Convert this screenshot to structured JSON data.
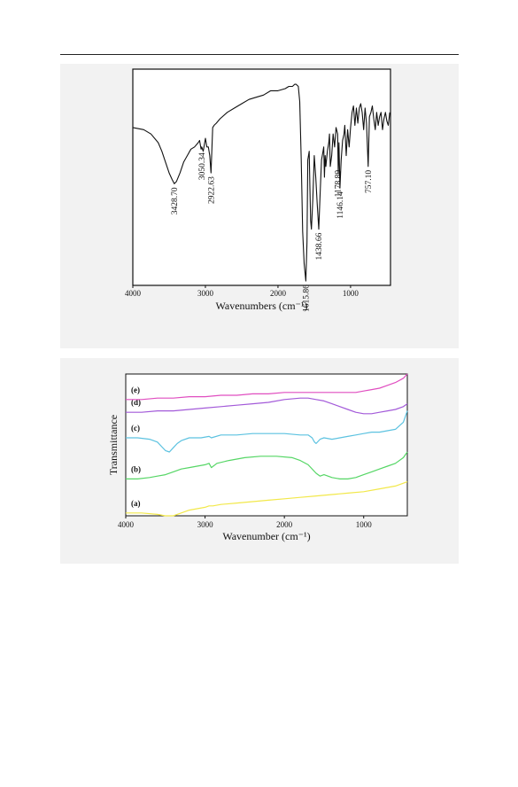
{
  "chart_data": [
    {
      "type": "line",
      "title": "",
      "xlabel": "Wavenumbers (cm⁻¹)",
      "ylabel": "",
      "xlim": [
        4000,
        450
      ],
      "xticks": [
        "4000",
        "3000",
        "2000",
        "1000"
      ],
      "xtick_values": [
        4000,
        3000,
        2000,
        1000
      ],
      "series": [
        {
          "color": "#111111",
          "x": [
            4000,
            3850,
            3750,
            3650,
            3600,
            3550,
            3500,
            3460,
            3428.7,
            3400,
            3350,
            3300,
            3250,
            3200,
            3150,
            3100,
            3080,
            3060,
            3050.34,
            3030,
            3000,
            2980,
            2960,
            2940,
            2922.63,
            2900,
            2880,
            2850,
            2800,
            2700,
            2600,
            2500,
            2400,
            2300,
            2200,
            2100,
            2000,
            1900,
            1850,
            1800,
            1770,
            1750,
            1720,
            1700,
            1680,
            1660,
            1640,
            1615.86,
            1600,
            1590,
            1570,
            1560,
            1550,
            1540,
            1520,
            1500,
            1480,
            1460,
            1438.66,
            1420,
            1400,
            1380,
            1370,
            1360,
            1350,
            1340,
            1320,
            1300,
            1290,
            1280,
            1260,
            1240,
            1220,
            1200,
            1178.8,
            1170,
            1160,
            1146.14,
            1130,
            1110,
            1090,
            1080,
            1060,
            1040,
            1020,
            1000,
            980,
            960,
            940,
            920,
            900,
            880,
            860,
            840,
            820,
            800,
            780,
            757.1,
            740,
            720,
            700,
            680,
            660,
            640,
            620,
            600,
            580,
            560,
            540,
            520,
            500,
            480,
            460
          ],
          "y": [
            0.73,
            0.72,
            0.7,
            0.66,
            0.62,
            0.57,
            0.52,
            0.49,
            0.47,
            0.48,
            0.52,
            0.57,
            0.6,
            0.63,
            0.64,
            0.66,
            0.67,
            0.63,
            0.64,
            0.62,
            0.68,
            0.64,
            0.64,
            0.6,
            0.52,
            0.73,
            0.74,
            0.75,
            0.77,
            0.8,
            0.82,
            0.84,
            0.86,
            0.87,
            0.88,
            0.9,
            0.9,
            0.91,
            0.92,
            0.92,
            0.93,
            0.93,
            0.92,
            0.85,
            0.58,
            0.25,
            0.1,
            0.02,
            0.2,
            0.58,
            0.62,
            0.45,
            0.3,
            0.26,
            0.4,
            0.6,
            0.5,
            0.38,
            0.26,
            0.42,
            0.58,
            0.62,
            0.64,
            0.5,
            0.6,
            0.55,
            0.62,
            0.66,
            0.7,
            0.55,
            0.6,
            0.7,
            0.64,
            0.73,
            0.7,
            0.52,
            0.66,
            0.45,
            0.58,
            0.67,
            0.7,
            0.74,
            0.6,
            0.72,
            0.64,
            0.73,
            0.8,
            0.83,
            0.74,
            0.82,
            0.75,
            0.82,
            0.84,
            0.8,
            0.72,
            0.82,
            0.75,
            0.55,
            0.78,
            0.8,
            0.83,
            0.77,
            0.72,
            0.8,
            0.74,
            0.78,
            0.8,
            0.72,
            0.77,
            0.8,
            0.76,
            0.74,
            0.8
          ]
        }
      ],
      "annotations": [
        {
          "text": "3428.70",
          "x": 3428.7,
          "y": 0.47
        },
        {
          "text": "3050.34",
          "x": 3050.34,
          "y": 0.63
        },
        {
          "text": "2922.63",
          "x": 2922.63,
          "y": 0.52
        },
        {
          "text": "1615.86",
          "x": 1615.86,
          "y": 0.02
        },
        {
          "text": "1438.66",
          "x": 1438.66,
          "y": 0.26
        },
        {
          "text": "1178.80",
          "x": 1178.8,
          "y": 0.55
        },
        {
          "text": "1146.14",
          "x": 1146.14,
          "y": 0.45
        },
        {
          "text": "757.10",
          "x": 757.1,
          "y": 0.55
        }
      ],
      "grid": false
    },
    {
      "type": "line",
      "title": "",
      "xlabel": "Wavenumber (cm⁻¹)",
      "ylabel": "Transmittance",
      "xlim": [
        4000,
        450
      ],
      "xticks": [
        "4000",
        "3000",
        "2000",
        "1000"
      ],
      "xtick_values": [
        4000,
        3000,
        2000,
        1000
      ],
      "ylim": [
        0,
        1
      ],
      "series": [
        {
          "name": "(a)",
          "color": "#f2e84a",
          "x": [
            4000,
            3800,
            3600,
            3500,
            3400,
            3300,
            3200,
            3100,
            3000,
            2950,
            2900,
            2800,
            2600,
            2400,
            2200,
            2000,
            1800,
            1600,
            1400,
            1200,
            1000,
            800,
            600,
            450
          ],
          "y": [
            0.02,
            0.02,
            0.01,
            0.0,
            0.0,
            0.02,
            0.04,
            0.05,
            0.06,
            0.07,
            0.07,
            0.08,
            0.09,
            0.1,
            0.11,
            0.12,
            0.13,
            0.14,
            0.15,
            0.16,
            0.17,
            0.19,
            0.21,
            0.24
          ]
        },
        {
          "name": "(b)",
          "color": "#55d665",
          "x": [
            4000,
            3850,
            3700,
            3600,
            3500,
            3400,
            3300,
            3200,
            3100,
            3000,
            2950,
            2920,
            2850,
            2700,
            2500,
            2300,
            2100,
            1900,
            1800,
            1700,
            1600,
            1550,
            1500,
            1400,
            1300,
            1200,
            1100,
            1000,
            900,
            800,
            700,
            600,
            500,
            450
          ],
          "y": [
            0.26,
            0.26,
            0.27,
            0.28,
            0.29,
            0.31,
            0.33,
            0.34,
            0.35,
            0.36,
            0.37,
            0.34,
            0.37,
            0.39,
            0.41,
            0.42,
            0.42,
            0.41,
            0.39,
            0.36,
            0.3,
            0.28,
            0.29,
            0.27,
            0.26,
            0.26,
            0.27,
            0.29,
            0.31,
            0.33,
            0.35,
            0.37,
            0.41,
            0.45
          ]
        },
        {
          "name": "(c)",
          "color": "#5cc2e0",
          "x": [
            4000,
            3850,
            3700,
            3600,
            3550,
            3500,
            3450,
            3400,
            3350,
            3300,
            3200,
            3050,
            2950,
            2920,
            2800,
            2600,
            2400,
            2200,
            2000,
            1800,
            1700,
            1650,
            1620,
            1600,
            1550,
            1500,
            1400,
            1300,
            1200,
            1100,
            1000,
            900,
            800,
            700,
            600,
            500,
            450
          ],
          "y": [
            0.55,
            0.55,
            0.54,
            0.52,
            0.49,
            0.46,
            0.45,
            0.48,
            0.51,
            0.53,
            0.55,
            0.55,
            0.56,
            0.55,
            0.57,
            0.57,
            0.58,
            0.58,
            0.58,
            0.57,
            0.57,
            0.55,
            0.52,
            0.51,
            0.54,
            0.55,
            0.54,
            0.55,
            0.56,
            0.57,
            0.58,
            0.59,
            0.59,
            0.6,
            0.61,
            0.66,
            0.74
          ]
        },
        {
          "name": "(d)",
          "color": "#a35ad9",
          "x": [
            4000,
            3800,
            3600,
            3400,
            3200,
            3000,
            2800,
            2600,
            2400,
            2200,
            2000,
            1800,
            1700,
            1600,
            1500,
            1400,
            1300,
            1200,
            1100,
            1000,
            900,
            800,
            700,
            600,
            500,
            450
          ],
          "y": [
            0.73,
            0.73,
            0.74,
            0.74,
            0.75,
            0.76,
            0.77,
            0.78,
            0.79,
            0.8,
            0.82,
            0.83,
            0.83,
            0.82,
            0.81,
            0.79,
            0.77,
            0.75,
            0.73,
            0.72,
            0.72,
            0.73,
            0.74,
            0.75,
            0.77,
            0.79
          ]
        },
        {
          "name": "(e)",
          "color": "#e04ec0",
          "x": [
            4000,
            3800,
            3600,
            3400,
            3200,
            3000,
            2800,
            2600,
            2400,
            2200,
            2000,
            1800,
            1600,
            1400,
            1200,
            1100,
            1000,
            900,
            800,
            700,
            600,
            500,
            450
          ],
          "y": [
            0.82,
            0.82,
            0.83,
            0.83,
            0.84,
            0.84,
            0.85,
            0.85,
            0.86,
            0.86,
            0.87,
            0.87,
            0.87,
            0.87,
            0.87,
            0.87,
            0.88,
            0.89,
            0.9,
            0.92,
            0.94,
            0.97,
            1.0
          ]
        }
      ],
      "legend": "inline labels at left",
      "grid": false
    }
  ]
}
